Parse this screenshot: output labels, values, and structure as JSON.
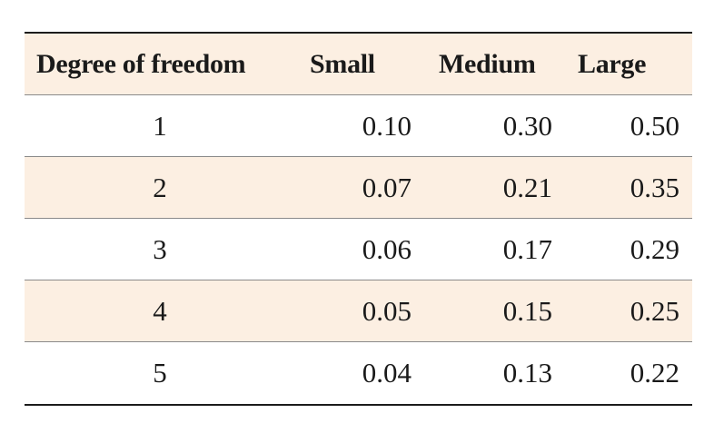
{
  "table": {
    "headers": [
      "Degree of freedom",
      "Small",
      "Medium",
      "Large"
    ],
    "rows": [
      [
        "1",
        "0.10",
        "0.30",
        "0.50"
      ],
      [
        "2",
        "0.07",
        "0.21",
        "0.35"
      ],
      [
        "3",
        "0.06",
        "0.17",
        "0.29"
      ],
      [
        "4",
        "0.05",
        "0.15",
        "0.25"
      ],
      [
        "5",
        "0.04",
        "0.13",
        "0.22"
      ]
    ],
    "header_background": "#fcefe2",
    "stripe_background": "#fcefe2",
    "rule_color": "#1c1c1c"
  }
}
